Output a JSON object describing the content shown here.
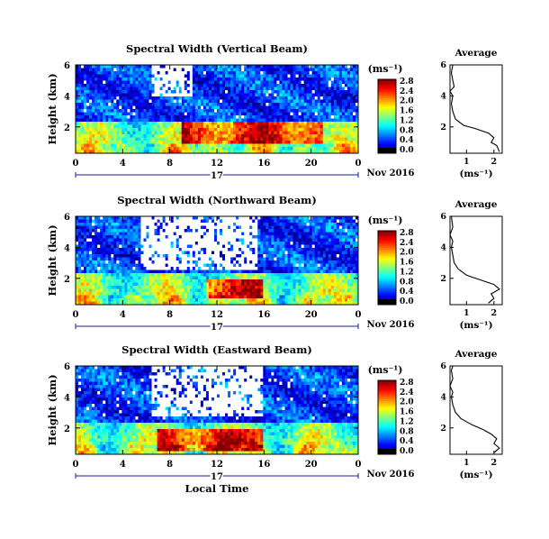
{
  "chart_data": [
    {
      "type": "heatmap",
      "title": "Spectral Width (Vertical Beam)",
      "ylabel": "Height (km)",
      "x_ticks": [
        "0",
        "4",
        "8",
        "12",
        "16",
        "20",
        "0"
      ],
      "y_ticks": [
        "2",
        "4",
        "6"
      ],
      "xlim": [
        0,
        24
      ],
      "ylim": [
        0.3,
        6
      ],
      "date_label": "17",
      "date_suffix": "Nov 2016",
      "colorbar": {
        "unit": "(ms⁻¹)",
        "ticks": [
          "0.0",
          "0.4",
          "0.8",
          "1.2",
          "1.6",
          "2.0",
          "2.4",
          "2.8"
        ],
        "range": [
          0,
          2.8
        ]
      },
      "average": {
        "title": "Average",
        "xlabel": "(ms⁻¹)",
        "x_ticks": [
          "1",
          "2"
        ],
        "xlim": [
          0.4,
          2.3
        ],
        "y_ticks": [
          "2",
          "4",
          "6"
        ],
        "ylim": [
          0.3,
          6
        ],
        "profile": [
          [
            0.4,
            2.2
          ],
          [
            0.8,
            2.1
          ],
          [
            1.0,
            1.9
          ],
          [
            1.3,
            2.0
          ],
          [
            1.6,
            1.8
          ],
          [
            1.9,
            1.3
          ],
          [
            2.1,
            0.9
          ],
          [
            2.5,
            0.6
          ],
          [
            3.0,
            0.5
          ],
          [
            3.5,
            0.45
          ],
          [
            4.0,
            0.5
          ],
          [
            4.3,
            0.4
          ],
          [
            4.6,
            0.55
          ],
          [
            5.0,
            0.5
          ],
          [
            5.5,
            0.45
          ],
          [
            6.0,
            0.5
          ]
        ]
      },
      "features": {
        "hot_band": [
          1.0,
          2.3
        ],
        "hot_time": [
          9,
          21
        ],
        "gap_time": [
          6.5,
          10
        ],
        "gap_height": [
          4.0,
          6.0
        ]
      }
    },
    {
      "type": "heatmap",
      "title": "Spectral Width (Northward Beam)",
      "ylabel": "Height (km)",
      "x_ticks": [
        "0",
        "4",
        "8",
        "12",
        "16",
        "20",
        "0"
      ],
      "y_ticks": [
        "2",
        "4",
        "6"
      ],
      "xlim": [
        0,
        24
      ],
      "ylim": [
        0.3,
        6
      ],
      "date_label": "17",
      "date_suffix": "Nov 2016",
      "colorbar": {
        "unit": "(ms⁻¹)",
        "ticks": [
          "0.0",
          "0.4",
          "0.8",
          "1.2",
          "1.6",
          "2.0",
          "2.4",
          "2.8"
        ],
        "range": [
          0,
          2.8
        ]
      },
      "average": {
        "title": "Average",
        "xlabel": "(ms⁻¹)",
        "x_ticks": [
          "1",
          "2"
        ],
        "xlim": [
          0.4,
          2.3
        ],
        "y_ticks": [
          "2",
          "4",
          "6"
        ],
        "ylim": [
          0.3,
          6
        ],
        "profile": [
          [
            0.4,
            1.8
          ],
          [
            0.7,
            2.0
          ],
          [
            1.0,
            1.9
          ],
          [
            1.3,
            2.2
          ],
          [
            1.6,
            2.0
          ],
          [
            1.9,
            1.5
          ],
          [
            2.2,
            1.0
          ],
          [
            2.6,
            0.7
          ],
          [
            3.0,
            0.55
          ],
          [
            3.5,
            0.5
          ],
          [
            4.0,
            0.45
          ],
          [
            4.4,
            0.5
          ],
          [
            4.8,
            0.4
          ],
          [
            5.3,
            0.5
          ],
          [
            6.0,
            0.45
          ]
        ]
      },
      "features": {
        "hot_band": [
          0.8,
          2.0
        ],
        "hot_time": [
          11,
          16
        ],
        "gap_time": [
          5.5,
          15.5
        ],
        "gap_height": [
          2.5,
          6.0
        ]
      }
    },
    {
      "type": "heatmap",
      "title": "Spectral Width (Eastward Beam)",
      "ylabel": "Height (km)",
      "x_ticks": [
        "0",
        "4",
        "8",
        "12",
        "16",
        "20",
        "0"
      ],
      "y_ticks": [
        "2",
        "4",
        "6"
      ],
      "xlim": [
        0,
        24
      ],
      "ylim": [
        0.3,
        6
      ],
      "date_label": "17",
      "date_suffix": "Nov 2016",
      "xlabel": "Local Time",
      "colorbar": {
        "unit": "(ms⁻¹)",
        "ticks": [
          "0.0",
          "0.4",
          "0.8",
          "1.2",
          "1.6",
          "2.0",
          "2.4",
          "2.8"
        ],
        "range": [
          0,
          2.8
        ]
      },
      "average": {
        "title": "Average",
        "xlabel": "(ms⁻¹)",
        "x_ticks": [
          "1",
          "2"
        ],
        "xlim": [
          0.4,
          2.3
        ],
        "y_ticks": [
          "2",
          "4",
          "6"
        ],
        "ylim": [
          0.3,
          6
        ],
        "profile": [
          [
            0.4,
            2.0
          ],
          [
            0.7,
            2.2
          ],
          [
            1.0,
            2.0
          ],
          [
            1.3,
            2.1
          ],
          [
            1.6,
            1.9
          ],
          [
            1.9,
            1.6
          ],
          [
            2.2,
            1.2
          ],
          [
            2.6,
            0.8
          ],
          [
            3.0,
            0.6
          ],
          [
            3.5,
            0.5
          ],
          [
            4.0,
            0.45
          ],
          [
            4.3,
            0.5
          ],
          [
            4.7,
            0.4
          ],
          [
            5.2,
            0.5
          ],
          [
            5.7,
            0.45
          ],
          [
            6.0,
            0.5
          ]
        ]
      },
      "features": {
        "hot_band": [
          0.6,
          1.9
        ],
        "hot_time": [
          7,
          16
        ],
        "gap_time": [
          6.5,
          16
        ],
        "gap_height": [
          2.8,
          6.0
        ]
      }
    }
  ]
}
